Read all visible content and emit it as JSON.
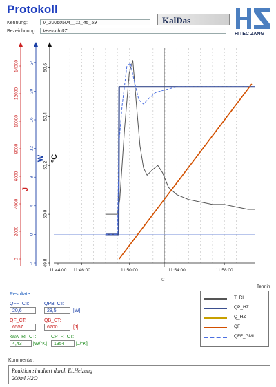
{
  "header": {
    "title": "Protokoll",
    "kennung_label": "Kennung:",
    "kennung_value": "V_20060504__11_45_59",
    "bezeichnung_label": "Bezeichnung:",
    "bezeichnung_value": "Versuch 07",
    "brand_name": "KalDas",
    "logo_text": "HITEC ZANG"
  },
  "chart_data": {
    "type": "line",
    "x": [
      "11:44:00",
      "11:46:00",
      "11:50:00",
      "11:54:00",
      "11:58:00"
    ],
    "xlabel": "CT",
    "axes": [
      {
        "label": "J",
        "color": "#cc2222",
        "ticks": [
          "0",
          "2000",
          "4000",
          "6000",
          "8000",
          "10000",
          "12000",
          "14000"
        ]
      },
      {
        "label": "W",
        "color": "#1a3fa6",
        "ticks": [
          "-4",
          "0",
          "4",
          "8",
          "12",
          "16",
          "20",
          "24"
        ]
      },
      {
        "label": "°C",
        "color": "#111111",
        "ticks": [
          "49,8",
          "50,0",
          "50,2",
          "50,4",
          "50,6"
        ]
      }
    ],
    "series": [
      {
        "name": "T_RI",
        "color": "#555555",
        "style": "solid",
        "width": 1,
        "points": [
          [
            4.0,
            50.0
          ],
          [
            4.6,
            50.0
          ],
          [
            5.0,
            50.0
          ],
          [
            5.2,
            50.06
          ],
          [
            5.6,
            50.35
          ],
          [
            6.0,
            50.58
          ],
          [
            6.3,
            50.63
          ],
          [
            6.6,
            50.45
          ],
          [
            6.9,
            50.28
          ],
          [
            7.2,
            50.19
          ],
          [
            7.5,
            50.16
          ],
          [
            7.9,
            50.18
          ],
          [
            8.4,
            50.2
          ],
          [
            8.8,
            50.17
          ],
          [
            9.3,
            50.11
          ],
          [
            10.0,
            50.08
          ],
          [
            11.0,
            50.06
          ],
          [
            12.0,
            50.05
          ],
          [
            13.0,
            50.04
          ],
          [
            14.0,
            50.04
          ],
          [
            15.0,
            50.03
          ],
          [
            16.0,
            50.02
          ],
          [
            16.6,
            50.02
          ]
        ]
      },
      {
        "name": "QP_HZ",
        "color": "#3b4f8f",
        "style": "solid",
        "width": 2.2,
        "points": [
          [
            4.0,
            0
          ],
          [
            5.0,
            0
          ],
          [
            5.1,
            0
          ],
          [
            5.15,
            20.6
          ],
          [
            7.0,
            20.6
          ],
          [
            12.0,
            20.6
          ],
          [
            16.6,
            20.6
          ]
        ]
      },
      {
        "name": "Q_HZ",
        "color": "#c8a000",
        "style": "solid",
        "width": 1.2,
        "points": [
          [
            5.15,
            0
          ],
          [
            16.3,
            12700
          ]
        ]
      },
      {
        "name": "QF",
        "color": "#d24f00",
        "style": "solid",
        "width": 1.6,
        "points": [
          [
            5.15,
            0
          ],
          [
            16.3,
            12700
          ]
        ]
      },
      {
        "name": "QFF_GMI",
        "color": "#4c6fe0",
        "style": "dashed",
        "width": 1,
        "points": [
          [
            4.0,
            0
          ],
          [
            5.0,
            0
          ],
          [
            5.15,
            13.0
          ],
          [
            5.4,
            18.0
          ],
          [
            5.8,
            23.5
          ],
          [
            6.1,
            23.9
          ],
          [
            6.4,
            21.5
          ],
          [
            6.8,
            18.8
          ],
          [
            7.2,
            18.2
          ],
          [
            7.6,
            18.9
          ],
          [
            8.2,
            19.8
          ],
          [
            9.0,
            20.2
          ],
          [
            10.0,
            20.6
          ],
          [
            12.0,
            20.6
          ],
          [
            16.6,
            20.6
          ]
        ]
      }
    ],
    "x_extent_minutes_from_1144": [
      0,
      16.6
    ],
    "w_range": [
      -4,
      26
    ],
    "j_range": [
      -300,
      15300
    ],
    "c_range": [
      49.8,
      50.68
    ],
    "grid": "vertical-dashed",
    "legend_position": "below-right"
  },
  "termin_label": "Termin",
  "results": {
    "title": "Resultate:",
    "items": [
      {
        "label": "QFF_CT:",
        "value": "20,6",
        "unit": "",
        "color": "#1a3fa6"
      },
      {
        "label": "QPB_CT:",
        "value": "28,5",
        "unit": "[W]",
        "color": "#1a3fa6"
      },
      {
        "label": "QF_CT:",
        "value": "6557",
        "unit": "",
        "color": "#cc2222"
      },
      {
        "label": "QB_CT:",
        "value": "6700",
        "unit": "[J]",
        "color": "#cc2222"
      },
      {
        "label": "kwA_RI_CT:",
        "value": "4,43",
        "unit": "[W/°K]",
        "color": "#1a8a1a"
      },
      {
        "label": "CP_R_CT:",
        "value": "1354",
        "unit": "[J/°K]",
        "color": "#1a8a1a"
      }
    ]
  },
  "legend": {
    "items": [
      {
        "name": "T_RI",
        "color": "#555555",
        "style": "solid"
      },
      {
        "name": "QP_HZ",
        "color": "#3b4f8f",
        "style": "solid"
      },
      {
        "name": "Q_HZ",
        "color": "#c8a000",
        "style": "solid"
      },
      {
        "name": "QF",
        "color": "#d24f00",
        "style": "solid"
      },
      {
        "name": "QFF_GMI",
        "color": "#4c6fe0",
        "style": "dashed"
      }
    ]
  },
  "comment": {
    "label": "Kommentar:",
    "line1": "Reaktion simuliert durch El.Heizung",
    "line2": "200ml H2O"
  }
}
